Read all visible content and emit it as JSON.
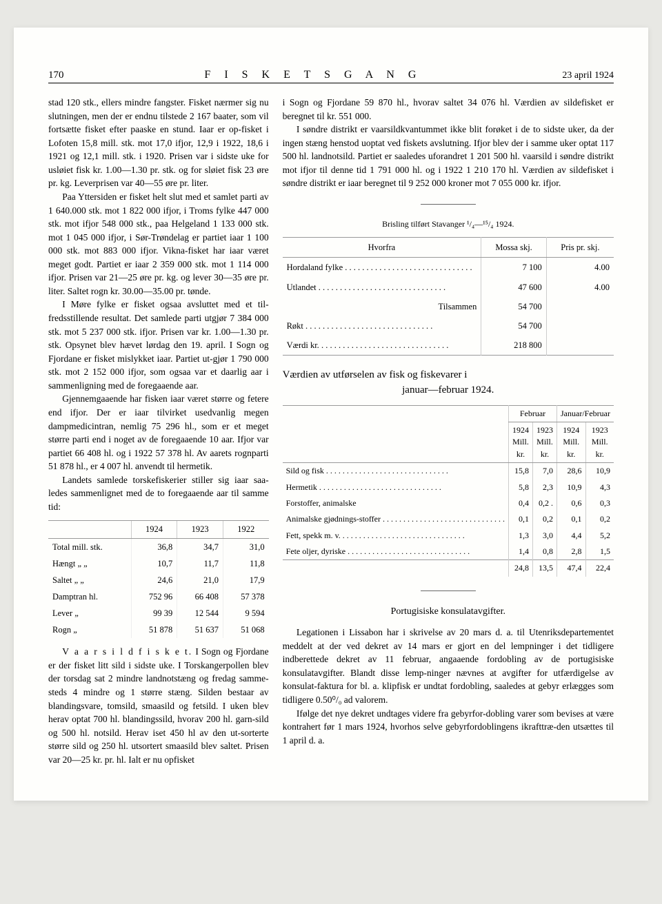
{
  "header": {
    "page_number": "170",
    "title": "F I S K E T S   G A N G",
    "date": "23 april 1924"
  },
  "left_column": {
    "para1": "stad 120 stk., ellers mindre fangster. Fisket nærmer sig nu slutningen, men der er endnu tilstede 2 167 baater, som vil fortsætte fisket efter paaske en stund. Iaar er op-fisket i Lofoten 15,8 mill. stk. mot 17,0 ifjor, 12,9 i 1922, 18,6 i 1921 og 12,1 mill. stk. i 1920. Prisen var i sidste uke for usløiet fisk kr. 1.00—1.30 pr. stk. og for sløiet fisk 23 øre pr. kg. Leverprisen var 40—55 øre pr. liter.",
    "para2": "Paa Yttersiden er fisket helt slut med et samlet parti av 1 640.000 stk. mot 1 822 000 ifjor, i Troms fylke 447 000 stk. mot ifjor 548 000 stk., paa Helgeland 1 133 000 stk. mot 1 045 000 ifjor, i Sør-Trøndelag er partiet iaar 1 100 000 stk. mot 883 000 ifjor. Vikna-fisket har iaar været meget godt. Partiet er iaar 2 359 000 stk. mot 1 114 000 ifjor. Prisen var 21—25 øre pr. kg. og lever 30—35 øre pr. liter. Saltet rogn kr. 30.00—35.00 pr. tønde.",
    "para3": "I Møre fylke er fisket ogsaa avsluttet med et til-fredsstillende resultat. Det samlede parti utgjør 7 384 000 stk. mot 5 237 000 stk. ifjor. Prisen var kr. 1.00—1.30 pr. stk. Opsynet blev hævet lørdag den 19. april. I Sogn og Fjordane er fisket mislykket iaar. Partiet ut-gjør 1 790 000 stk. mot 2 152 000 ifjor, som ogsaa var et daarlig aar i sammenligning med de foregaaende aar.",
    "para4": "Gjennemgaaende har fisken iaar været større og fetere end ifjor. Der er iaar tilvirket usedvanlig megen dampmedicintran, nemlig 75 296 hl., som er et meget større parti end i noget av de foregaaende 10 aar. Ifjor var partiet 66 408 hl. og i 1922 57 378 hl. Av aarets rognparti 51 878 hl., er 4 007 hl. anvendt til hermetik.",
    "para5": "Landets samlede torskefiskerier stiller sig iaar saa-ledes sammenlignet med de to foregaaende aar til samme tid:",
    "para6_lead": "V a a r s i l d f i s k e t.",
    "para6": "I Sogn og Fjordane er der fisket litt sild i sidste uke. I Torskangerpollen blev der torsdag sat 2 mindre landnotstæng og fredag samme-steds 4 mindre og 1 større stæng. Silden bestaar av blandingsvare, tomsild, smaasild og fetsild. I uken blev herav optat 700 hl. blandingssild, hvorav 200 hl. garn-sild og 500 hl. notsild. Herav iset 450 hl av den ut-sorterte større sild og 250 hl. utsortert smaasild blev saltet. Prisen var 20—25 kr. pr. hl. Ialt er nu opfisket"
  },
  "table1": {
    "headers": [
      "",
      "1924",
      "1923",
      "1922"
    ],
    "rows": [
      {
        "label": "Total mill. stk.",
        "v1": "36,8",
        "v2": "34,7",
        "v3": "31,0"
      },
      {
        "label": "Hængt  „  „",
        "v1": "10,7",
        "v2": "11,7",
        "v3": "11,8"
      },
      {
        "label": "Saltet  „  „",
        "v1": "24,6",
        "v2": "21,0",
        "v3": "17,9"
      },
      {
        "label": "Damptran hl.",
        "v1": "752 96",
        "v2": "66 408",
        "v3": "57 378"
      },
      {
        "label": "Lever  „",
        "v1": "99 39",
        "v2": "12 544",
        "v3": "9 594"
      },
      {
        "label": "Rogn  „",
        "v1": "51 878",
        "v2": "51 637",
        "v3": "51 068"
      }
    ]
  },
  "right_column": {
    "para1": "i Sogn og Fjordane 59 870 hl., hvorav saltet 34 076 hl. Værdien av sildefisket er beregnet til kr. 551 000.",
    "para2": "I søndre distrikt er vaarsildkvantummet ikke blit forøket i de to sidste uker, da der ingen stæng henstod uoptat ved fiskets avslutning. Ifjor blev der i samme uker optat 117 500 hl. landnotsild. Partiet er saaledes uforandret 1 201 500 hl. vaarsild i søndre distrikt mot ifjor til denne tid 1 791 000 hl. og i 1922 1 210 170 hl. Værdien av sildefisket i søndre distrikt er iaar beregnet til 9 252 000 kroner mot 7 055 000 kr. ifjor."
  },
  "table2": {
    "caption": "Brisling tilført Stavanger ¹/₄—¹⁵/₄ 1924.",
    "headers": {
      "hvorfra": "Hvorfra",
      "mossa": "Mossa skj.",
      "pris": "Pris pr. skj."
    },
    "rows": [
      {
        "label": "Hordaland fylke",
        "mossa": "7 100",
        "pris": "4.00"
      },
      {
        "label": "Utlandet",
        "mossa": "47 600",
        "pris": "4.00"
      },
      {
        "label": "Tilsammen",
        "mossa": "54 700",
        "pris": ""
      },
      {
        "label": "Røkt",
        "mossa": "54 700",
        "pris": ""
      },
      {
        "label": "Værdi kr.",
        "mossa": "218 800",
        "pris": ""
      }
    ]
  },
  "section2": {
    "title_line1": "Værdien av utførselen av fisk og fiskevarer i",
    "title_line2": "januar—februar 1924."
  },
  "table3": {
    "group_headers": {
      "feb": "Februar",
      "janfeb": "Januar/Februar"
    },
    "sub_headers": {
      "c1": "1924 Mill. kr.",
      "c2": "1923 Mill. kr.",
      "c3": "1924 Mill. kr.",
      "c4": "1923 Mill. kr."
    },
    "rows": [
      {
        "label": "Sild og fisk",
        "c1": "15,8",
        "c2": "7,0",
        "c3": "28,6",
        "c4": "10,9"
      },
      {
        "label": "Hermetik",
        "c1": "5,8",
        "c2": "2,3",
        "c3": "10,9",
        "c4": "4,3"
      },
      {
        "label": "Forstoffer, animalske",
        "c1": "0,4",
        "c2": "0,2 .",
        "c3": "0,6",
        "c4": "0,3"
      },
      {
        "label": "Animalske gjødnings-stoffer",
        "c1": "0,1",
        "c2": "0,2",
        "c3": "0,1",
        "c4": "0,2"
      },
      {
        "label": "Fett, spekk m. v.",
        "c1": "1,3",
        "c2": "3,0",
        "c3": "4,4",
        "c4": "5,2"
      },
      {
        "label": "Fete oljer, dyriske",
        "c1": "1,4",
        "c2": "0,8",
        "c3": "2,8",
        "c4": "1,5"
      }
    ],
    "totals": {
      "c1": "24,8",
      "c2": "13,5",
      "c3": "47,4",
      "c4": "22,4"
    }
  },
  "section3": {
    "title": "Portugisiske konsulatavgifter.",
    "para1": "Legationen i Lissabon har i skrivelse av 20 mars d. a. til Utenriksdepartementet meddelt at der ved dekret av 14 mars er gjort en del lempninger i det tidligere indberettede dekret av 11 februar, angaaende fordobling av de portugisiske konsulatavgifter. Blandt disse lemp-ninger nævnes at avgifter for utfærdigelse av konsulat-faktura for bl. a. klipfisk er undtat fordobling, saaledes at gebyr erlægges som tidligere 0.50⁰/₀ ad valorem.",
    "para2": "Ifølge det nye dekret undtages videre fra gebyrfor-dobling varer som bevises at være kontrahert før 1 mars 1924, hvorhos selve gebyrfordoblingens ikrafttræ-den utsættes til 1 april d. a."
  }
}
